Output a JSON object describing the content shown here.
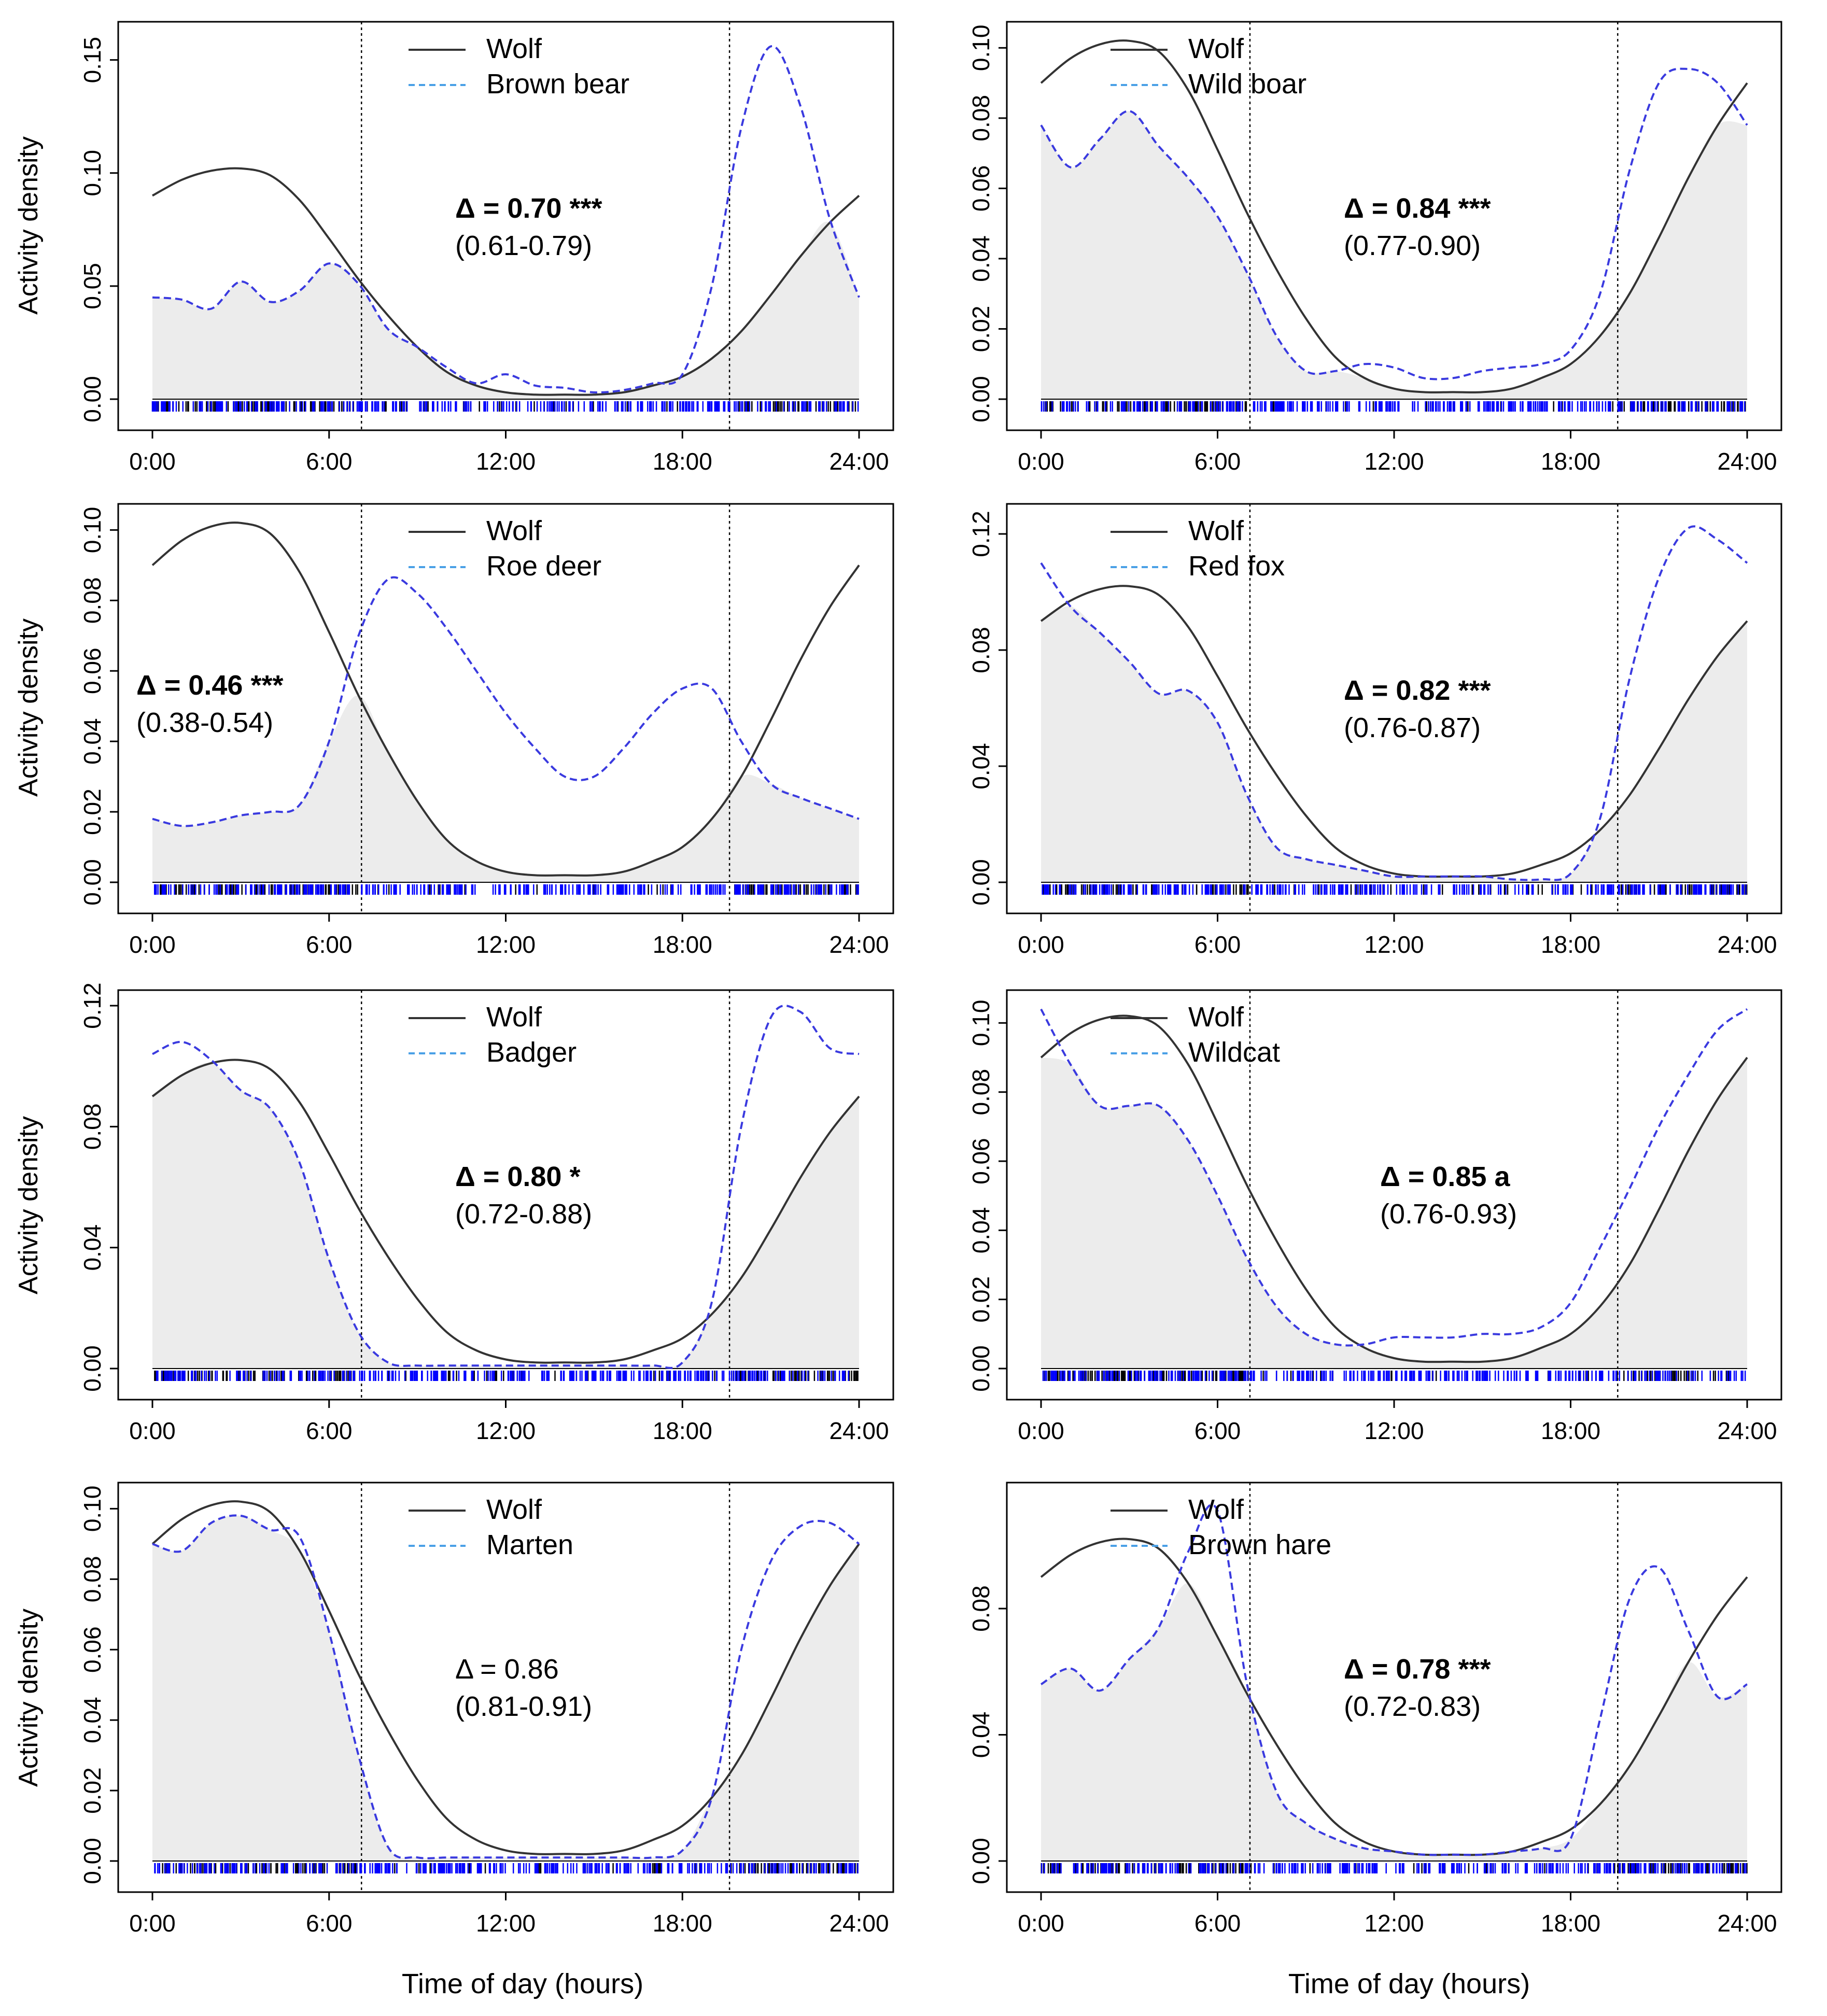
{
  "figure": {
    "y_axis_label": "Activity density",
    "x_axis_label": "Time of day (hours)",
    "legend_wolf": "Wolf",
    "colors": {
      "wolf": "#333333",
      "other": "#3a3adf",
      "legend_dash": "#4aa0e6",
      "fill": "#ececec",
      "rug_wolf": "#000000",
      "rug_other": "#0000ff"
    }
  },
  "chart_data": [
    {
      "type": "line",
      "panel": "a",
      "species": "Brown bear",
      "x_ticks": [
        "0:00",
        "6:00",
        "12:00",
        "18:00",
        "24:00"
      ],
      "y_ticks": [
        "0.00",
        "0.05",
        "0.10",
        "0.15"
      ],
      "ylim": [
        0,
        0.16
      ],
      "sunrise": 7.1,
      "sunset": 19.6,
      "overlap_label": "Δ = 0.70 ***",
      "overlap_ci": "(0.61-0.79)",
      "bold": true,
      "x": [
        0,
        1,
        2,
        3,
        4,
        5,
        6,
        7,
        8,
        9,
        10,
        11,
        12,
        13,
        14,
        15,
        16,
        17,
        18,
        19,
        20,
        21,
        22,
        23,
        24
      ],
      "wolf": [
        0.09,
        0.097,
        0.101,
        0.102,
        0.099,
        0.088,
        0.071,
        0.053,
        0.037,
        0.023,
        0.012,
        0.006,
        0.003,
        0.002,
        0.002,
        0.002,
        0.003,
        0.006,
        0.01,
        0.018,
        0.03,
        0.046,
        0.063,
        0.078,
        0.09
      ],
      "other": [
        0.045,
        0.044,
        0.04,
        0.052,
        0.043,
        0.048,
        0.06,
        0.051,
        0.031,
        0.023,
        0.014,
        0.007,
        0.011,
        0.006,
        0.005,
        0.003,
        0.004,
        0.007,
        0.011,
        0.05,
        0.12,
        0.156,
        0.13,
        0.08,
        0.045
      ]
    },
    {
      "type": "line",
      "panel": "b",
      "species": "Wild boar",
      "x_ticks": [
        "0:00",
        "6:00",
        "12:00",
        "18:00",
        "24:00"
      ],
      "y_ticks": [
        "0.00",
        "0.02",
        "0.04",
        "0.06",
        "0.08",
        "0.10"
      ],
      "ylim": [
        0,
        0.103
      ],
      "sunrise": 7.1,
      "sunset": 19.6,
      "overlap_label": "Δ = 0.84 ***",
      "overlap_ci": "(0.77-0.90)",
      "bold": true,
      "x": [
        0,
        1,
        2,
        3,
        4,
        5,
        6,
        7,
        8,
        9,
        10,
        11,
        12,
        13,
        14,
        15,
        16,
        17,
        18,
        19,
        20,
        21,
        22,
        23,
        24
      ],
      "wolf": [
        0.09,
        0.097,
        0.101,
        0.102,
        0.099,
        0.088,
        0.071,
        0.053,
        0.037,
        0.023,
        0.012,
        0.006,
        0.003,
        0.002,
        0.002,
        0.002,
        0.003,
        0.006,
        0.01,
        0.018,
        0.03,
        0.046,
        0.063,
        0.078,
        0.09
      ],
      "other": [
        0.078,
        0.066,
        0.074,
        0.082,
        0.072,
        0.063,
        0.052,
        0.036,
        0.018,
        0.008,
        0.008,
        0.01,
        0.009,
        0.006,
        0.006,
        0.008,
        0.009,
        0.01,
        0.014,
        0.03,
        0.065,
        0.09,
        0.094,
        0.09,
        0.078
      ]
    },
    {
      "type": "line",
      "panel": "c",
      "species": "Roe deer",
      "x_ticks": [
        "0:00",
        "6:00",
        "12:00",
        "18:00",
        "24:00"
      ],
      "y_ticks": [
        "0.00",
        "0.02",
        "0.04",
        "0.06",
        "0.08",
        "0.10"
      ],
      "ylim": [
        0,
        0.103
      ],
      "sunrise": 7.1,
      "sunset": 19.6,
      "overlap_label": "Δ = 0.46 ***",
      "overlap_ci": "(0.38-0.54)",
      "bold": true,
      "x": [
        0,
        1,
        2,
        3,
        4,
        5,
        6,
        7,
        8,
        9,
        10,
        11,
        12,
        13,
        14,
        15,
        16,
        17,
        18,
        19,
        20,
        21,
        22,
        23,
        24
      ],
      "wolf": [
        0.09,
        0.097,
        0.101,
        0.102,
        0.099,
        0.088,
        0.071,
        0.053,
        0.037,
        0.023,
        0.012,
        0.006,
        0.003,
        0.002,
        0.002,
        0.002,
        0.003,
        0.006,
        0.01,
        0.018,
        0.03,
        0.046,
        0.063,
        0.078,
        0.09
      ],
      "other": [
        0.018,
        0.016,
        0.017,
        0.019,
        0.02,
        0.022,
        0.04,
        0.07,
        0.086,
        0.082,
        0.072,
        0.06,
        0.048,
        0.038,
        0.03,
        0.03,
        0.038,
        0.048,
        0.055,
        0.055,
        0.04,
        0.028,
        0.024,
        0.021,
        0.018
      ]
    },
    {
      "type": "line",
      "panel": "d",
      "species": "Red fox",
      "x_ticks": [
        "0:00",
        "6:00",
        "12:00",
        "18:00",
        "24:00"
      ],
      "y_ticks": [
        "0.00",
        "0.04",
        "0.08",
        "0.12"
      ],
      "ylim": [
        0,
        0.125
      ],
      "sunrise": 7.1,
      "sunset": 19.6,
      "overlap_label": "Δ = 0.82 ***",
      "overlap_ci": "(0.76-0.87)",
      "bold": true,
      "x": [
        0,
        1,
        2,
        3,
        4,
        5,
        6,
        7,
        8,
        9,
        10,
        11,
        12,
        13,
        14,
        15,
        16,
        17,
        18,
        19,
        20,
        21,
        22,
        23,
        24
      ],
      "wolf": [
        0.09,
        0.097,
        0.101,
        0.102,
        0.099,
        0.088,
        0.071,
        0.053,
        0.037,
        0.023,
        0.012,
        0.006,
        0.003,
        0.002,
        0.002,
        0.002,
        0.003,
        0.006,
        0.01,
        0.018,
        0.03,
        0.046,
        0.063,
        0.078,
        0.09
      ],
      "other": [
        0.11,
        0.095,
        0.086,
        0.076,
        0.065,
        0.066,
        0.055,
        0.03,
        0.012,
        0.008,
        0.006,
        0.004,
        0.002,
        0.002,
        0.002,
        0.002,
        0.001,
        0.001,
        0.003,
        0.022,
        0.07,
        0.105,
        0.122,
        0.118,
        0.11
      ]
    },
    {
      "type": "line",
      "panel": "e",
      "species": "Badger",
      "x_ticks": [
        "0:00",
        "6:00",
        "12:00",
        "18:00",
        "24:00"
      ],
      "y_ticks": [
        "0.00",
        "0.04",
        "0.08",
        "0.12"
      ],
      "ylim": [
        0,
        0.12
      ],
      "sunrise": 7.1,
      "sunset": 19.6,
      "overlap_label": "Δ = 0.80 *",
      "overlap_ci": "(0.72-0.88)",
      "bold": true,
      "x": [
        0,
        1,
        2,
        3,
        4,
        5,
        6,
        7,
        8,
        9,
        10,
        11,
        12,
        13,
        14,
        15,
        16,
        17,
        18,
        19,
        20,
        21,
        22,
        23,
        24
      ],
      "wolf": [
        0.09,
        0.097,
        0.101,
        0.102,
        0.099,
        0.088,
        0.071,
        0.053,
        0.037,
        0.023,
        0.012,
        0.006,
        0.003,
        0.002,
        0.002,
        0.002,
        0.003,
        0.006,
        0.01,
        0.018,
        0.03,
        0.046,
        0.063,
        0.078,
        0.09
      ],
      "other": [
        0.104,
        0.108,
        0.102,
        0.092,
        0.086,
        0.068,
        0.036,
        0.012,
        0.002,
        0.001,
        0.001,
        0.001,
        0.001,
        0.001,
        0.001,
        0.001,
        0.001,
        0.001,
        0.002,
        0.022,
        0.08,
        0.116,
        0.118,
        0.106,
        0.104
      ]
    },
    {
      "type": "line",
      "panel": "f",
      "species": "Wildcat",
      "x_ticks": [
        "0:00",
        "6:00",
        "12:00",
        "18:00",
        "24:00"
      ],
      "y_ticks": [
        "0.00",
        "0.02",
        "0.04",
        "0.06",
        "0.08",
        "0.10"
      ],
      "ylim": [
        0,
        0.105
      ],
      "sunrise": 7.1,
      "sunset": 19.6,
      "overlap_label": "Δ = 0.85 a",
      "overlap_ci": "(0.76-0.93)",
      "bold": true,
      "x": [
        0,
        1,
        2,
        3,
        4,
        5,
        6,
        7,
        8,
        9,
        10,
        11,
        12,
        13,
        14,
        15,
        16,
        17,
        18,
        19,
        20,
        21,
        22,
        23,
        24
      ],
      "wolf": [
        0.09,
        0.097,
        0.101,
        0.102,
        0.099,
        0.088,
        0.071,
        0.053,
        0.037,
        0.023,
        0.012,
        0.006,
        0.003,
        0.002,
        0.002,
        0.002,
        0.003,
        0.006,
        0.01,
        0.018,
        0.03,
        0.046,
        0.063,
        0.078,
        0.09
      ],
      "other": [
        0.104,
        0.088,
        0.076,
        0.076,
        0.076,
        0.066,
        0.05,
        0.032,
        0.018,
        0.01,
        0.007,
        0.007,
        0.009,
        0.009,
        0.009,
        0.01,
        0.01,
        0.012,
        0.019,
        0.035,
        0.052,
        0.07,
        0.085,
        0.098,
        0.104
      ]
    },
    {
      "type": "line",
      "panel": "g",
      "species": "Marten",
      "x_ticks": [
        "0:00",
        "6:00",
        "12:00",
        "18:00",
        "24:00"
      ],
      "y_ticks": [
        "0.00",
        "0.02",
        "0.04",
        "0.06",
        "0.08",
        "0.10"
      ],
      "ylim": [
        0,
        0.103
      ],
      "sunrise": 7.1,
      "sunset": 19.6,
      "overlap_label": "Δ = 0.86",
      "overlap_ci": "(0.81-0.91)",
      "bold": false,
      "x": [
        0,
        1,
        2,
        3,
        4,
        5,
        6,
        7,
        8,
        9,
        10,
        11,
        12,
        13,
        14,
        15,
        16,
        17,
        18,
        19,
        20,
        21,
        22,
        23,
        24
      ],
      "wolf": [
        0.09,
        0.097,
        0.101,
        0.102,
        0.099,
        0.088,
        0.071,
        0.053,
        0.037,
        0.023,
        0.012,
        0.006,
        0.003,
        0.002,
        0.002,
        0.002,
        0.003,
        0.006,
        0.01,
        0.018,
        0.03,
        0.046,
        0.063,
        0.078,
        0.09
      ],
      "other": [
        0.09,
        0.088,
        0.096,
        0.098,
        0.094,
        0.092,
        0.065,
        0.03,
        0.004,
        0.001,
        0.001,
        0.001,
        0.001,
        0.001,
        0.001,
        0.001,
        0.001,
        0.001,
        0.003,
        0.018,
        0.06,
        0.085,
        0.095,
        0.096,
        0.09
      ]
    },
    {
      "type": "line",
      "panel": "h",
      "species": "Brown hare",
      "x_ticks": [
        "0:00",
        "6:00",
        "12:00",
        "18:00",
        "24:00"
      ],
      "y_ticks": [
        "0.00",
        "0.04",
        "0.08"
      ],
      "ylim": [
        0,
        0.115
      ],
      "sunrise": 7.1,
      "sunset": 19.6,
      "overlap_label": "Δ = 0.78 ***",
      "overlap_ci": "(0.72-0.83)",
      "bold": true,
      "x": [
        0,
        1,
        2,
        3,
        4,
        5,
        6,
        7,
        8,
        9,
        10,
        11,
        12,
        13,
        14,
        15,
        16,
        17,
        18,
        19,
        20,
        21,
        22,
        23,
        24
      ],
      "wolf": [
        0.09,
        0.097,
        0.101,
        0.102,
        0.099,
        0.088,
        0.071,
        0.053,
        0.037,
        0.023,
        0.012,
        0.006,
        0.003,
        0.002,
        0.002,
        0.002,
        0.003,
        0.006,
        0.01,
        0.018,
        0.03,
        0.046,
        0.063,
        0.078,
        0.09
      ],
      "other": [
        0.056,
        0.061,
        0.054,
        0.064,
        0.074,
        0.098,
        0.111,
        0.056,
        0.022,
        0.012,
        0.007,
        0.004,
        0.003,
        0.002,
        0.002,
        0.002,
        0.003,
        0.004,
        0.007,
        0.045,
        0.083,
        0.093,
        0.073,
        0.052,
        0.056
      ]
    }
  ]
}
